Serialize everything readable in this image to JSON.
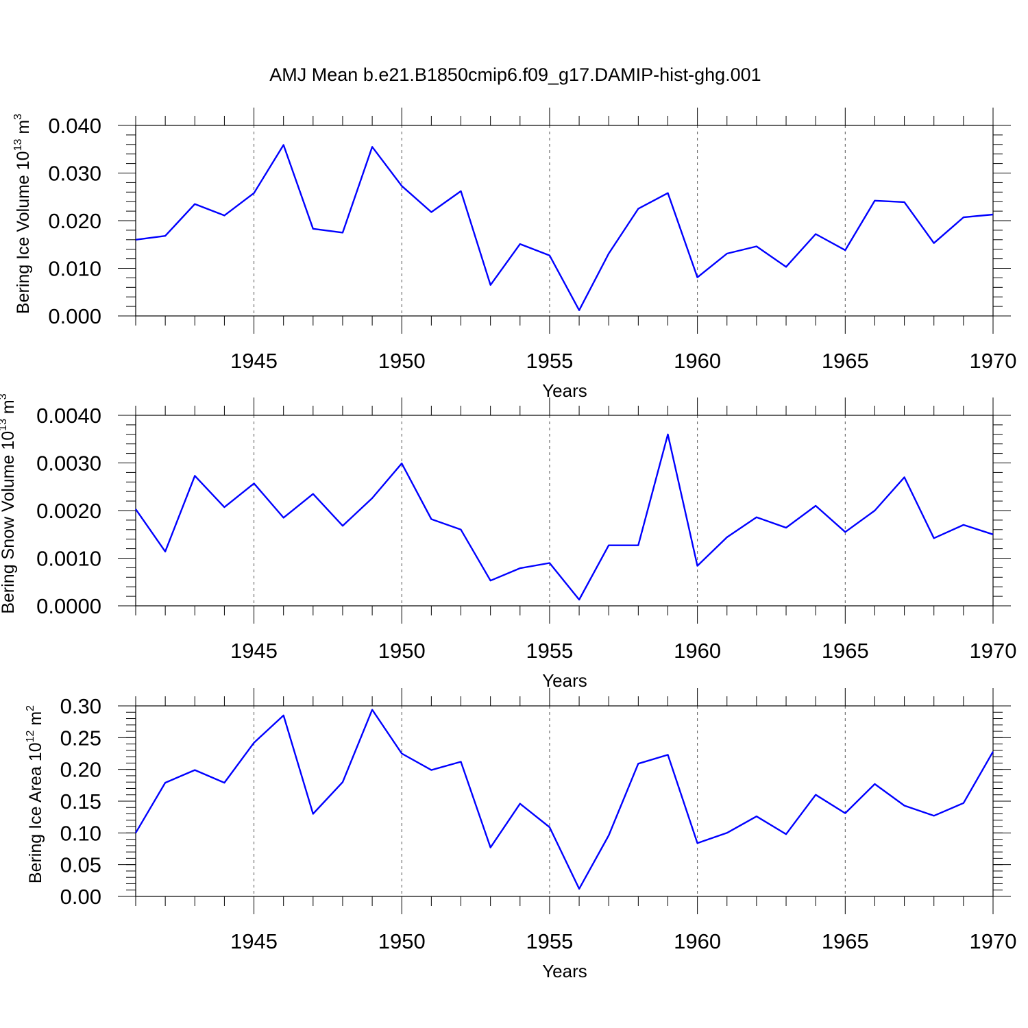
{
  "figure": {
    "title": "AMJ Mean b.e21.B1850cmip6.f09_g17.DAMIP-hist-ghg.001"
  },
  "chart_data": [
    {
      "type": "line",
      "ylabel": "Bering Ice Volume 10",
      "ylabel_sup": "13",
      "ylabel_unit": "m",
      "ylabel_unit_sup": "3",
      "xlabel": "Years",
      "xlim": [
        1941,
        1970
      ],
      "ylim": [
        0,
        0.04
      ],
      "xticks": [
        1945,
        1950,
        1955,
        1960,
        1965,
        1970
      ],
      "yticks": [
        0,
        0.01,
        0.02,
        0.03,
        0.04
      ],
      "ytick_labels": [
        "0.000",
        "0.010",
        "0.020",
        "0.030",
        "0.040"
      ],
      "yminor_step": 0.002,
      "grid": "vertical dashed at major x ticks",
      "color": "#0000ff",
      "x": [
        1941,
        1942,
        1943,
        1944,
        1945,
        1946,
        1947,
        1948,
        1949,
        1950,
        1951,
        1952,
        1953,
        1954,
        1955,
        1956,
        1957,
        1958,
        1959,
        1960,
        1961,
        1962,
        1963,
        1964,
        1965,
        1966,
        1967,
        1968,
        1969,
        1970
      ],
      "y": [
        0.016,
        0.0168,
        0.0235,
        0.0211,
        0.0258,
        0.0359,
        0.0183,
        0.0175,
        0.0355,
        0.0273,
        0.0218,
        0.0262,
        0.0065,
        0.0151,
        0.0127,
        0.0012,
        0.0131,
        0.0225,
        0.0258,
        0.0081,
        0.0131,
        0.0146,
        0.0103,
        0.0172,
        0.0138,
        0.0242,
        0.0239,
        0.0153,
        0.0207,
        0.0213
      ]
    },
    {
      "type": "line",
      "ylabel": "Bering Snow Volume 10",
      "ylabel_sup": "13",
      "ylabel_unit": "m",
      "ylabel_unit_sup": "3",
      "xlabel": "Years",
      "xlim": [
        1941,
        1970
      ],
      "ylim": [
        0,
        0.004
      ],
      "xticks": [
        1945,
        1950,
        1955,
        1960,
        1965,
        1970
      ],
      "yticks": [
        0,
        0.001,
        0.002,
        0.003,
        0.004
      ],
      "ytick_labels": [
        "0.0000",
        "0.0010",
        "0.0020",
        "0.0030",
        "0.0040"
      ],
      "yminor_step": 0.0002,
      "grid": "vertical dashed at major x ticks",
      "color": "#0000ff",
      "x": [
        1941,
        1942,
        1943,
        1944,
        1945,
        1946,
        1947,
        1948,
        1949,
        1950,
        1951,
        1952,
        1953,
        1954,
        1955,
        1956,
        1957,
        1958,
        1959,
        1960,
        1961,
        1962,
        1963,
        1964,
        1965,
        1966,
        1967,
        1968,
        1969,
        1970
      ],
      "y": [
        0.00203,
        0.00114,
        0.00273,
        0.00207,
        0.00257,
        0.00185,
        0.00235,
        0.00168,
        0.00226,
        0.00299,
        0.00182,
        0.0016,
        0.00053,
        0.00079,
        0.0009,
        0.00013,
        0.00127,
        0.00127,
        0.0036,
        0.00084,
        0.00144,
        0.00186,
        0.00164,
        0.0021,
        0.00155,
        0.002,
        0.0027,
        0.00142,
        0.0017,
        0.0015
      ]
    },
    {
      "type": "line",
      "ylabel": "Bering Ice Area 10",
      "ylabel_sup": "12",
      "ylabel_unit": "m",
      "ylabel_unit_sup": "2",
      "xlabel": "Years",
      "xlim": [
        1941,
        1970
      ],
      "ylim": [
        0,
        0.3
      ],
      "xticks": [
        1945,
        1950,
        1955,
        1960,
        1965,
        1970
      ],
      "yticks": [
        0,
        0.05,
        0.1,
        0.15,
        0.2,
        0.25,
        0.3
      ],
      "ytick_labels": [
        "0.00",
        "0.05",
        "0.10",
        "0.15",
        "0.20",
        "0.25",
        "0.30"
      ],
      "yminor_step": 0.01,
      "grid": "vertical dashed at major x ticks",
      "color": "#0000ff",
      "x": [
        1941,
        1942,
        1943,
        1944,
        1945,
        1946,
        1947,
        1948,
        1949,
        1950,
        1951,
        1952,
        1953,
        1954,
        1955,
        1956,
        1957,
        1958,
        1959,
        1960,
        1961,
        1962,
        1963,
        1964,
        1965,
        1966,
        1967,
        1968,
        1969,
        1970
      ],
      "y": [
        0.1,
        0.179,
        0.199,
        0.179,
        0.242,
        0.285,
        0.13,
        0.18,
        0.294,
        0.225,
        0.199,
        0.212,
        0.077,
        0.146,
        0.109,
        0.012,
        0.096,
        0.209,
        0.223,
        0.084,
        0.1,
        0.126,
        0.098,
        0.16,
        0.131,
        0.177,
        0.143,
        0.127,
        0.147,
        0.228
      ]
    }
  ]
}
